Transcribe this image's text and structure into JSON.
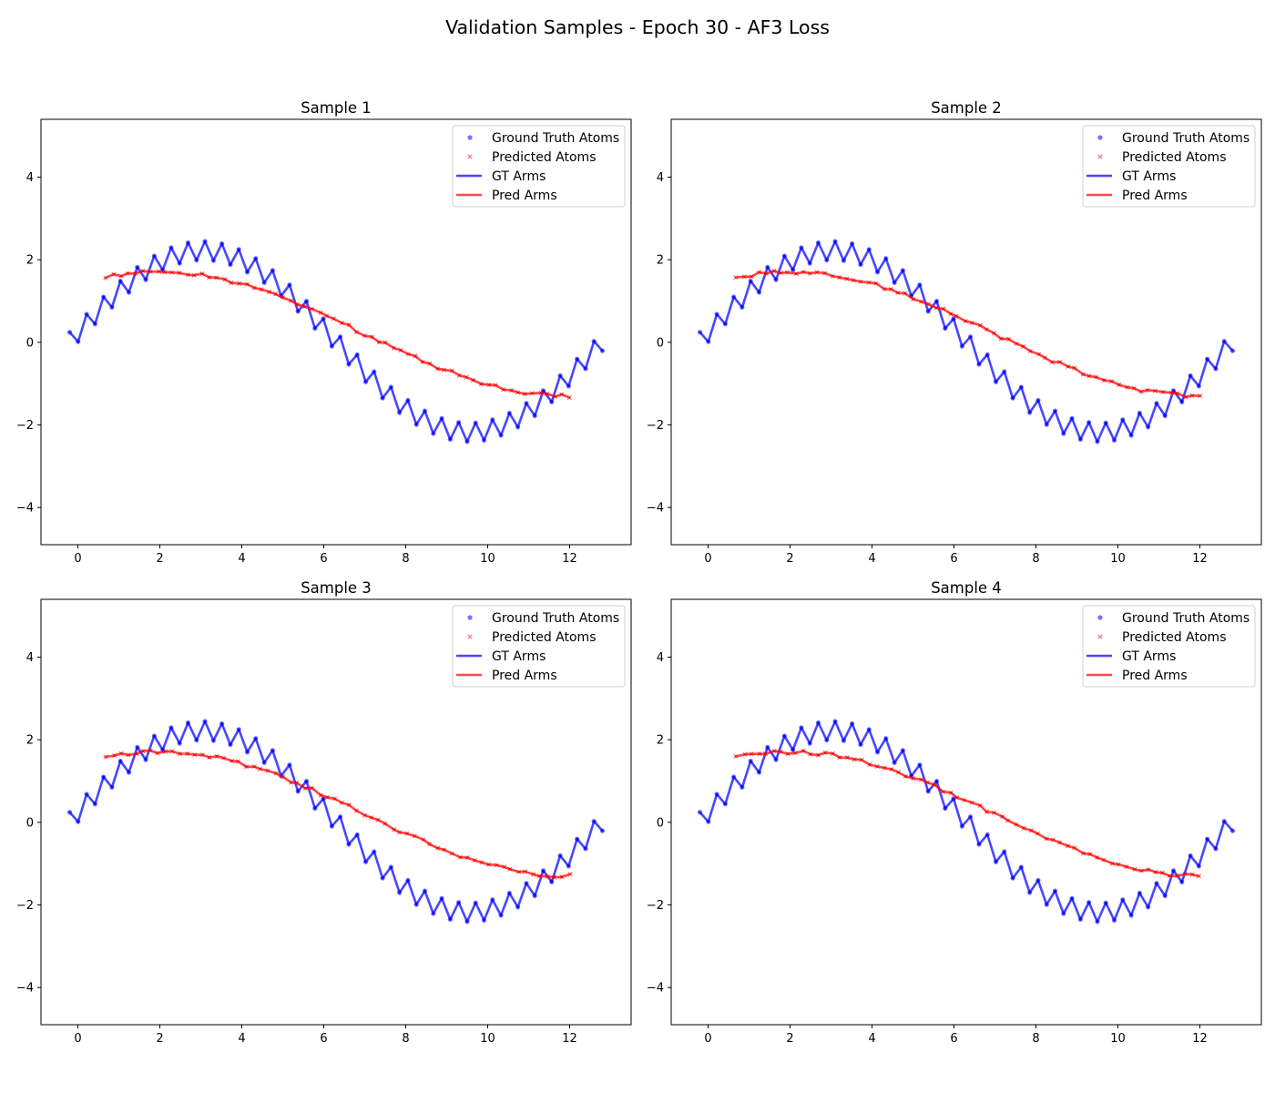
{
  "suptitle": "Validation Samples - Epoch 30 - AF3 Loss",
  "legend": {
    "placement": "upper-right",
    "entries": [
      {
        "label": "Ground Truth Atoms",
        "kind": "dot"
      },
      {
        "label": "Predicted Atoms",
        "kind": "x"
      },
      {
        "label": "GT Arms",
        "kind": "line-blue"
      },
      {
        "label": "Pred Arms",
        "kind": "line-red"
      }
    ]
  },
  "colors": {
    "gt": "#0000ff",
    "pred": "#ff0000"
  },
  "chart_data": [
    {
      "type": "line",
      "title": "Sample 1",
      "xlabel": "",
      "ylabel": "",
      "xlim": [
        -0.9,
        13.5
      ],
      "ylim": [
        -4.9,
        5.4
      ],
      "xticks": [
        0,
        2,
        4,
        6,
        8,
        10,
        12
      ],
      "yticks": [
        -4,
        -2,
        0,
        2,
        4
      ],
      "grid": false,
      "ground_truth": {
        "x_start": -0.2,
        "x_end": 12.8,
        "n_atoms": 64,
        "amplitude": 2.2,
        "zigzag": 0.45,
        "period": 13.0
      },
      "prediction": {
        "x_start": 0.7,
        "x_end": 12.0,
        "n_atoms": 64,
        "start_y": 1.58,
        "peak_x": 2.0,
        "peak_y": 1.7,
        "end_y": -1.3
      }
    },
    {
      "type": "line",
      "title": "Sample 2",
      "xlabel": "",
      "ylabel": "",
      "xlim": [
        -0.9,
        13.5
      ],
      "ylim": [
        -4.9,
        5.4
      ],
      "xticks": [
        0,
        2,
        4,
        6,
        8,
        10,
        12
      ],
      "yticks": [
        -4,
        -2,
        0,
        2,
        4
      ],
      "grid": false,
      "ground_truth": {
        "x_start": -0.2,
        "x_end": 12.8,
        "n_atoms": 64,
        "amplitude": 2.2,
        "zigzag": 0.45,
        "period": 13.0
      },
      "prediction": {
        "x_start": 0.7,
        "x_end": 12.0,
        "n_atoms": 64,
        "start_y": 1.58,
        "peak_x": 2.0,
        "peak_y": 1.7,
        "end_y": -1.3
      }
    },
    {
      "type": "line",
      "title": "Sample 3",
      "xlabel": "",
      "ylabel": "",
      "xlim": [
        -0.9,
        13.5
      ],
      "ylim": [
        -4.9,
        5.4
      ],
      "xticks": [
        0,
        2,
        4,
        6,
        8,
        10,
        12
      ],
      "yticks": [
        -4,
        -2,
        0,
        2,
        4
      ],
      "grid": false,
      "ground_truth": {
        "x_start": -0.2,
        "x_end": 12.8,
        "n_atoms": 64,
        "amplitude": 2.2,
        "zigzag": 0.45,
        "period": 13.0
      },
      "prediction": {
        "x_start": 0.7,
        "x_end": 12.0,
        "n_atoms": 64,
        "start_y": 1.58,
        "peak_x": 2.0,
        "peak_y": 1.7,
        "end_y": -1.3
      }
    },
    {
      "type": "line",
      "title": "Sample 4",
      "xlabel": "",
      "ylabel": "",
      "xlim": [
        -0.9,
        13.5
      ],
      "ylim": [
        -4.9,
        5.4
      ],
      "xticks": [
        0,
        2,
        4,
        6,
        8,
        10,
        12
      ],
      "yticks": [
        -4,
        -2,
        0,
        2,
        4
      ],
      "grid": false,
      "ground_truth": {
        "x_start": -0.2,
        "x_end": 12.8,
        "n_atoms": 64,
        "amplitude": 2.2,
        "zigzag": 0.45,
        "period": 13.0
      },
      "prediction": {
        "x_start": 0.7,
        "x_end": 12.0,
        "n_atoms": 64,
        "start_y": 1.58,
        "peak_x": 2.0,
        "peak_y": 1.7,
        "end_y": -1.3
      }
    }
  ]
}
